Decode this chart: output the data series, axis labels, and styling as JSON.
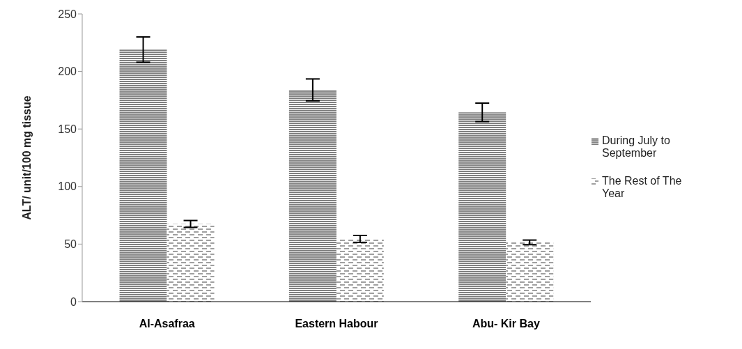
{
  "chart_data": {
    "type": "bar",
    "ylabel": "ALT/ unit/100 mg tissue",
    "categories": [
      "Al-Asafraa",
      "Eastern Habour",
      "Abu- Kir Bay"
    ],
    "series": [
      {
        "name": "During July to September",
        "color": "#808080",
        "values": [
          219,
          184,
          164.5
        ],
        "errors": [
          11,
          9.5,
          8
        ]
      },
      {
        "name": "The Rest of The Year",
        "color": "#404040",
        "values": [
          67.5,
          54.5,
          51.5
        ],
        "errors": [
          3,
          3,
          2
        ]
      }
    ],
    "ylim": [
      0,
      250
    ],
    "yticks": [
      0,
      50,
      100,
      150,
      200,
      250
    ],
    "grid": false,
    "legend": "right"
  }
}
